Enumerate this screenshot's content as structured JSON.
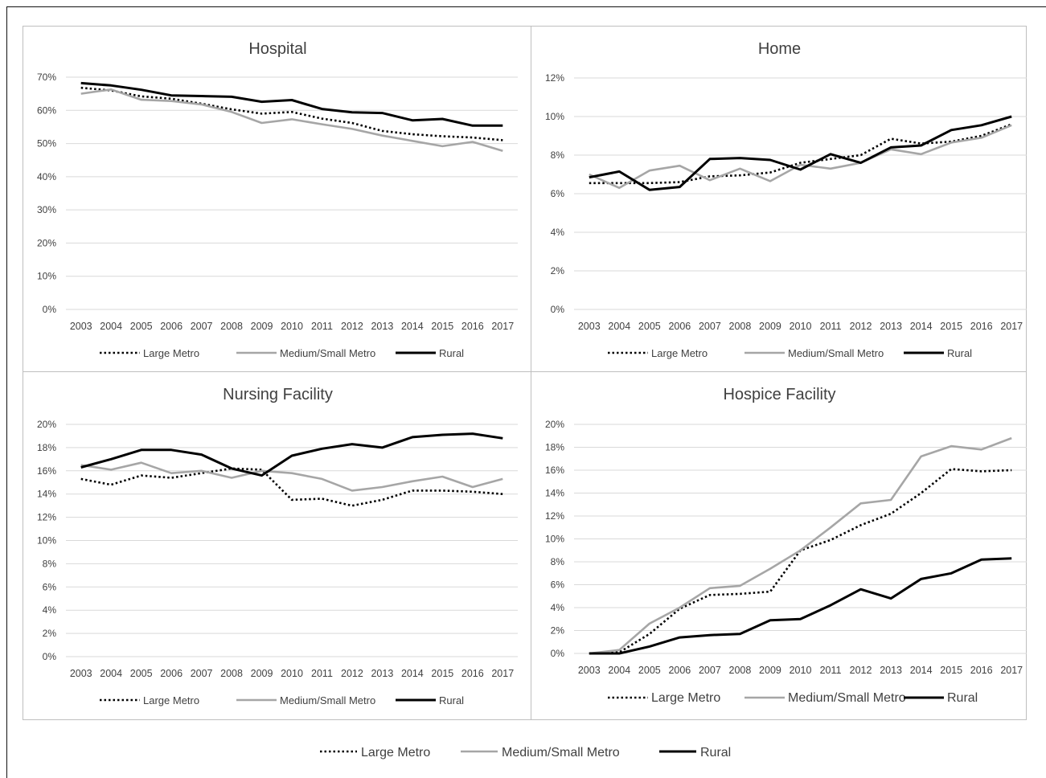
{
  "chart_data": [
    {
      "type": "line",
      "title": "Hospital",
      "categories": [
        "2003",
        "2004",
        "2005",
        "2006",
        "2007",
        "2008",
        "2009",
        "2010",
        "2011",
        "2012",
        "2013",
        "2014",
        "2015",
        "2016",
        "2017"
      ],
      "y_ticks": [
        "0%",
        "10%",
        "20%",
        "30%",
        "40%",
        "50%",
        "60%",
        "70%"
      ],
      "ylim": [
        0,
        70
      ],
      "grid": true,
      "legend_position": "bottom",
      "series": [
        {
          "name": "Large Metro",
          "values": [
            66.8,
            66.0,
            64.2,
            63.5,
            62.0,
            60.3,
            59.0,
            59.5,
            57.5,
            56.2,
            53.8,
            52.8,
            52.2,
            51.8,
            51.0
          ]
        },
        {
          "name": "Medium/Small Metro",
          "values": [
            65.0,
            66.3,
            63.2,
            62.8,
            61.8,
            59.5,
            56.2,
            57.3,
            55.8,
            54.4,
            52.4,
            50.8,
            49.2,
            50.5,
            47.8
          ]
        },
        {
          "name": "Rural",
          "values": [
            68.2,
            67.5,
            66.2,
            64.5,
            64.3,
            64.1,
            62.6,
            63.1,
            60.4,
            59.4,
            59.2,
            57.0,
            57.4,
            55.4,
            55.4
          ]
        }
      ]
    },
    {
      "type": "line",
      "title": "Home",
      "categories": [
        "2003",
        "2004",
        "2005",
        "2006",
        "2007",
        "2008",
        "2009",
        "2010",
        "2011",
        "2012",
        "2013",
        "2014",
        "2015",
        "2016",
        "2017"
      ],
      "y_ticks": [
        "0%",
        "2%",
        "4%",
        "6%",
        "8%",
        "10%",
        "12%"
      ],
      "ylim": [
        0,
        12
      ],
      "grid": true,
      "legend_position": "bottom",
      "series": [
        {
          "name": "Large Metro",
          "values": [
            6.55,
            6.55,
            6.55,
            6.6,
            6.9,
            6.95,
            7.1,
            7.6,
            7.8,
            8.0,
            8.85,
            8.6,
            8.7,
            9.0,
            9.6
          ]
        },
        {
          "name": "Medium/Small Metro",
          "values": [
            7.0,
            6.3,
            7.2,
            7.45,
            6.7,
            7.3,
            6.65,
            7.5,
            7.3,
            7.6,
            8.3,
            8.05,
            8.65,
            8.9,
            9.55
          ]
        },
        {
          "name": "Rural",
          "values": [
            6.85,
            7.15,
            6.2,
            6.35,
            7.8,
            7.85,
            7.75,
            7.25,
            8.05,
            7.6,
            8.4,
            8.5,
            9.3,
            9.55,
            10.0
          ]
        }
      ]
    },
    {
      "type": "line",
      "title": "Nursing Facility",
      "categories": [
        "2003",
        "2004",
        "2005",
        "2006",
        "2007",
        "2008",
        "2009",
        "2010",
        "2011",
        "2012",
        "2013",
        "2014",
        "2015",
        "2016",
        "2017"
      ],
      "y_ticks": [
        "0%",
        "2%",
        "4%",
        "6%",
        "8%",
        "10%",
        "12%",
        "14%",
        "16%",
        "18%",
        "20%"
      ],
      "ylim": [
        0,
        20
      ],
      "grid": true,
      "legend_position": "bottom",
      "series": [
        {
          "name": "Large Metro",
          "values": [
            15.3,
            14.8,
            15.6,
            15.4,
            15.8,
            16.2,
            16.1,
            13.5,
            13.6,
            13.0,
            13.5,
            14.3,
            14.3,
            14.2,
            14.0
          ]
        },
        {
          "name": "Medium/Small Metro",
          "values": [
            16.5,
            16.1,
            16.7,
            15.8,
            16.0,
            15.4,
            16.0,
            15.8,
            15.3,
            14.3,
            14.6,
            15.1,
            15.5,
            14.6,
            15.3
          ]
        },
        {
          "name": "Rural",
          "values": [
            16.3,
            17.0,
            17.8,
            17.8,
            17.4,
            16.2,
            15.6,
            17.3,
            17.9,
            18.3,
            18.0,
            18.9,
            19.1,
            19.2,
            18.8
          ]
        }
      ]
    },
    {
      "type": "line",
      "title": "Hospice Facility",
      "categories": [
        "2003",
        "2004",
        "2005",
        "2006",
        "2007",
        "2008",
        "2009",
        "2010",
        "2011",
        "2012",
        "2013",
        "2014",
        "2015",
        "2016",
        "2017"
      ],
      "y_ticks": [
        "0%",
        "2%",
        "4%",
        "6%",
        "8%",
        "10%",
        "12%",
        "14%",
        "16%",
        "18%",
        "20%"
      ],
      "ylim": [
        0,
        20
      ],
      "grid": true,
      "legend_position": "bottom",
      "series": [
        {
          "name": "Large Metro",
          "values": [
            0.0,
            0.1,
            1.7,
            3.9,
            5.1,
            5.2,
            5.4,
            9.0,
            9.9,
            11.2,
            12.2,
            14.0,
            16.1,
            15.9,
            16.0
          ]
        },
        {
          "name": "Medium/Small Metro",
          "values": [
            0.0,
            0.3,
            2.6,
            4.0,
            5.7,
            5.9,
            7.4,
            9.0,
            11.0,
            13.1,
            13.4,
            17.2,
            18.1,
            17.8,
            18.8
          ]
        },
        {
          "name": "Rural",
          "values": [
            0.0,
            0.0,
            0.6,
            1.4,
            1.6,
            1.7,
            2.9,
            3.0,
            4.2,
            5.6,
            4.8,
            6.5,
            7.0,
            8.2,
            8.3
          ]
        }
      ]
    }
  ],
  "legend": [
    "Large Metro",
    "Medium/Small Metro",
    "Rural"
  ],
  "styles": {
    "Large Metro": {
      "color": "#000000",
      "dash": "dotted"
    },
    "Medium/Small Metro": {
      "color": "#a6a6a6",
      "dash": "solid"
    },
    "Rural": {
      "color": "#000000",
      "dash": "solid"
    },
    "grid_color": "#d9d9d9",
    "text_color": "#404040"
  }
}
